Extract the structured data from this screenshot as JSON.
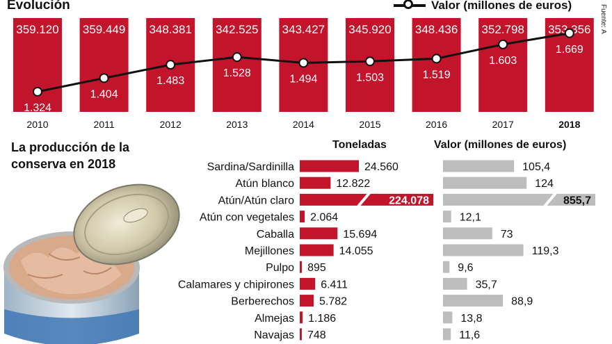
{
  "header": {
    "title": "Evolución",
    "legend_label": "Valor (millones de euros)",
    "source": "Fuente: A"
  },
  "section": {
    "title": "La producción de la conserva en 2018",
    "col_toneladas": "Toneladas",
    "col_valor": "Valor (millones de euros)"
  },
  "colors": {
    "red": "#c2152b",
    "gray": "#bdbdbd",
    "line": "#111111"
  },
  "chart_data": [
    {
      "type": "bar",
      "x_labels": [
        "2010",
        "2011",
        "2012",
        "2013",
        "2014",
        "2015",
        "2016",
        "2017",
        "2018"
      ],
      "bar_labels": [
        "359.120",
        "359.449",
        "348.381",
        "342.525",
        "343.427",
        "345.920",
        "348.436",
        "352.798",
        "353.356"
      ],
      "values": [
        359120,
        359449,
        348381,
        342525,
        343427,
        345920,
        348436,
        352798,
        353356
      ],
      "line_labels": [
        "1.324",
        "1.404",
        "1.483",
        "1.528",
        "1.494",
        "1.503",
        "1.519",
        "1.603",
        "1.669"
      ],
      "line_values": [
        1324,
        1404,
        1483,
        1528,
        1494,
        1503,
        1519,
        1603,
        1669
      ],
      "line_name": "Valor (millones de euros)",
      "highlight_label": "2018"
    },
    {
      "type": "bar",
      "categories": [
        "Sardina/Sardinilla",
        "Atún blanco",
        "Atún/Atún claro",
        "Atún con vegetales",
        "Caballa",
        "Mejillones",
        "Pulpo",
        "Calamares y chipirones",
        "Berberechos",
        "Almejas",
        "Navajas"
      ],
      "series": [
        {
          "name": "Toneladas",
          "values": [
            24560,
            12822,
            224078,
            2064,
            15694,
            14055,
            895,
            6411,
            5782,
            1186,
            748
          ],
          "labels": [
            "24.560",
            "12.822",
            "224.078",
            "2.064",
            "15.694",
            "14.055",
            "895",
            "6.411",
            "5.782",
            "1.186",
            "748"
          ]
        },
        {
          "name": "Valor (millones de euros)",
          "values": [
            105.4,
            124,
            855.7,
            12.1,
            73,
            119.3,
            9.6,
            35.7,
            88.9,
            13.8,
            11.6
          ],
          "labels": [
            "105,4",
            "124",
            "855,7",
            "12,1",
            "73",
            "119,3",
            "9,6",
            "35,7",
            "88,9",
            "13,8",
            "11,6"
          ]
        }
      ]
    }
  ]
}
